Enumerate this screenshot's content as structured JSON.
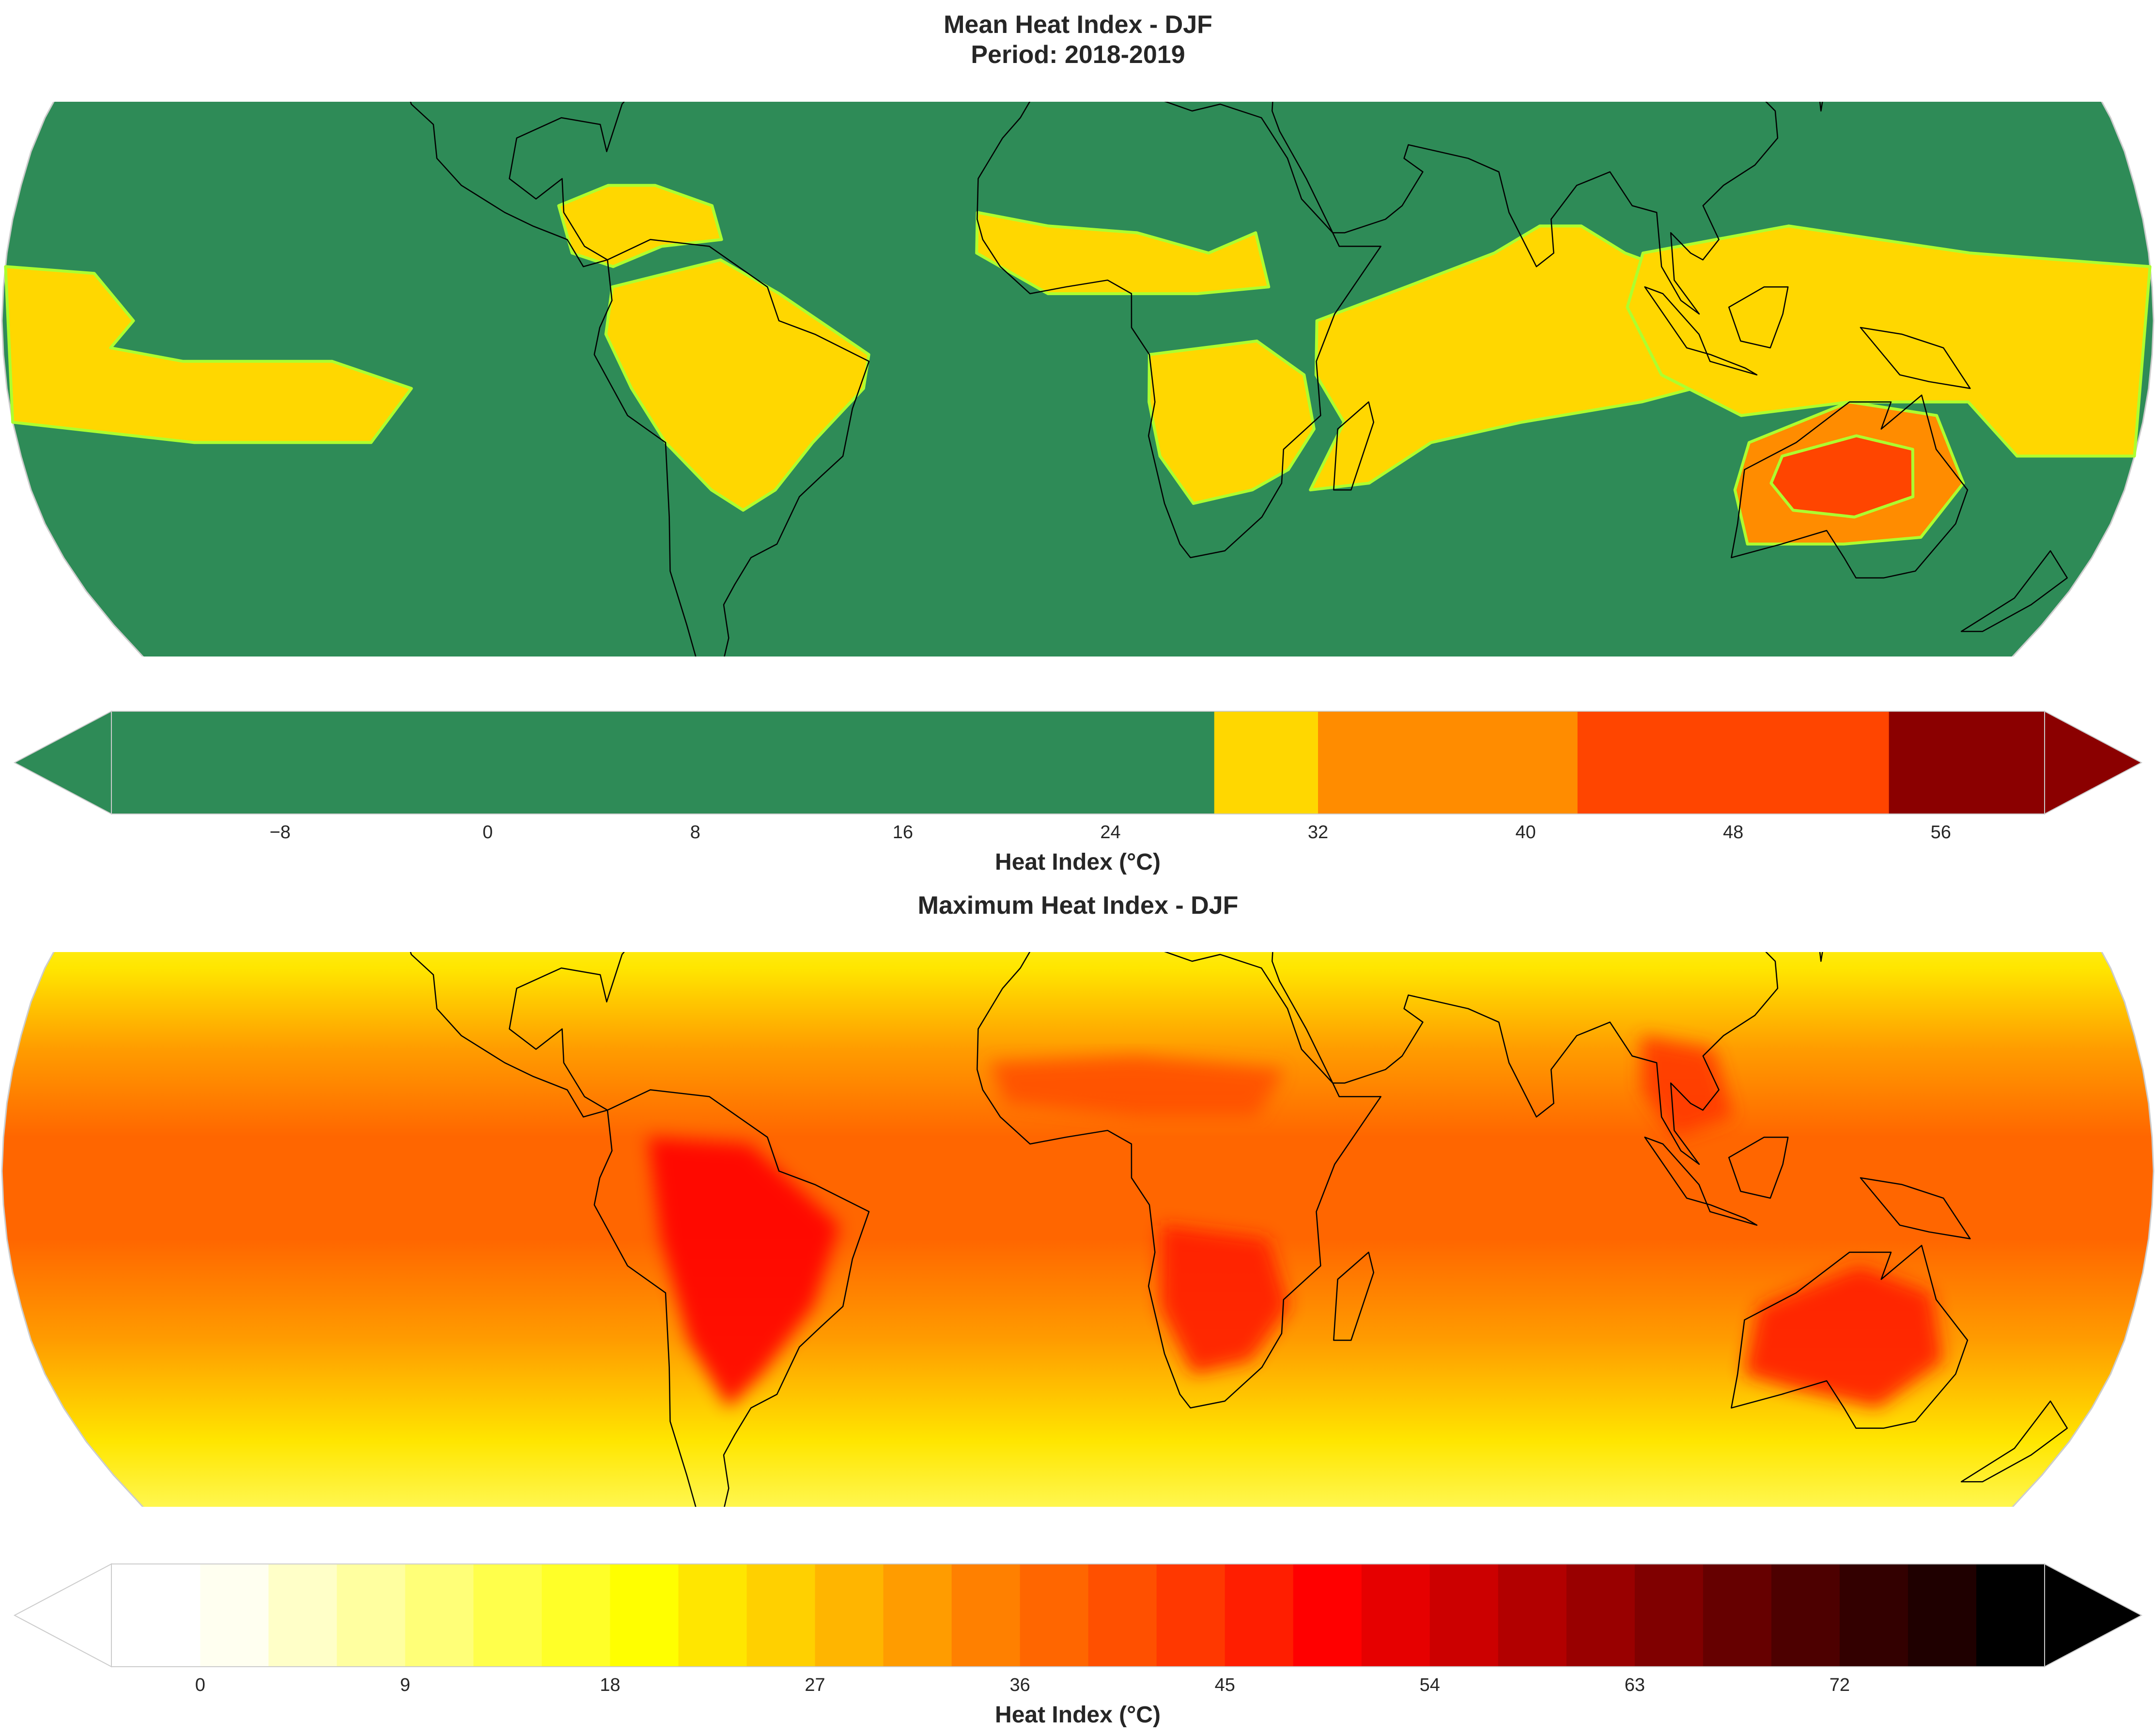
{
  "maps": [
    {
      "title": "Mean Heat Index - DJF",
      "subtitle": "Period: 2018-2019",
      "projection": "Robinson",
      "colors": {
        "background": "#2e8b57",
        "class_1": "#ffd700",
        "class_2": "#ff8c00",
        "class_3": "#ff4500",
        "class_4": "#8b0000",
        "contour_line": "#adff2f",
        "coastline": "#000000"
      },
      "regions": [
        {
          "name": "central-pacific-warm-area",
          "level": 1
        },
        {
          "name": "caribbean-central-america-warm-area",
          "level": 1
        },
        {
          "name": "amazon-warm-area",
          "level": 1
        },
        {
          "name": "west-africa-warm-area",
          "level": 1
        },
        {
          "name": "southern-africa-warm-area",
          "level": 1
        },
        {
          "name": "indian-ocean-warm-band",
          "level": 1
        },
        {
          "name": "maritime-continent-west-pacific-warm-area",
          "level": 1
        },
        {
          "name": "australia-hot-area",
          "level": 2
        },
        {
          "name": "australia-interior-very-hot-area",
          "level": 3
        }
      ],
      "colorbar": {
        "label": "Heat Index (°C)",
        "ticks": [
          "−8",
          "0",
          "8",
          "16",
          "24",
          "32",
          "40",
          "48",
          "56"
        ],
        "tick_values": [
          -8,
          0,
          8,
          16,
          24,
          32,
          40,
          48,
          56
        ],
        "range": [
          -14.5,
          60
        ],
        "segments": [
          {
            "from": -14.5,
            "to": 28,
            "color": "#2e8b57"
          },
          {
            "from": 28,
            "to": 32,
            "color": "#ffd700"
          },
          {
            "from": 32,
            "to": 42,
            "color": "#ff8c00"
          },
          {
            "from": 42,
            "to": 54,
            "color": "#ff4500"
          },
          {
            "from": 54,
            "to": 60,
            "color": "#8b0000"
          }
        ],
        "extend": "both"
      }
    },
    {
      "title": "Maximum Heat Index - DJF",
      "projection": "Robinson",
      "colors": {
        "coastline": "#000000",
        "border": "#333333"
      },
      "latitude_bands": [
        {
          "lat": 90,
          "level": 0
        },
        {
          "lat": 60,
          "level": 1
        },
        {
          "lat": 45,
          "level": 4
        },
        {
          "lat": 30,
          "level": 7
        },
        {
          "lat": 18,
          "level": 10
        },
        {
          "lat": 5,
          "level": 12
        },
        {
          "lat": -10,
          "level": 12
        },
        {
          "lat": -25,
          "level": 10
        },
        {
          "lat": -40,
          "level": 7
        },
        {
          "lat": -55,
          "level": 3
        },
        {
          "lat": -70,
          "level": 0
        },
        {
          "lat": -90,
          "level": 0
        }
      ],
      "land_hotspots": [
        {
          "name": "south-america-hotspot",
          "level": 16
        },
        {
          "name": "southern-africa-hotspot",
          "level": 15
        },
        {
          "name": "australia-hotspot",
          "level": 15
        },
        {
          "name": "southeast-asia-hotspot",
          "level": 14
        },
        {
          "name": "sahel-hotspot",
          "level": 13
        }
      ],
      "colorbar": {
        "label": "Heat Index (°C)",
        "ticks": [
          "0",
          "9",
          "18",
          "27",
          "36",
          "45",
          "54",
          "63",
          "72"
        ],
        "tick_values": [
          0,
          9,
          18,
          27,
          36,
          45,
          54,
          63,
          72
        ],
        "range": [
          -3.9,
          81
        ],
        "step": 3,
        "levels_start": 0,
        "colors": [
          "#ffffff",
          "#fffff0",
          "#ffffc8",
          "#ffffa0",
          "#ffff78",
          "#ffff4b",
          "#ffff28",
          "#ffff00",
          "#ffe600",
          "#ffd000",
          "#ffb500",
          "#ff9c00",
          "#ff8000",
          "#ff6600",
          "#ff5000",
          "#ff3800",
          "#ff1e00",
          "#ff0000",
          "#e60000",
          "#cc0000",
          "#b20000",
          "#990000",
          "#800000",
          "#660000",
          "#4d0000",
          "#330000",
          "#1f0000",
          "#000000"
        ],
        "extend": "both"
      }
    }
  ]
}
